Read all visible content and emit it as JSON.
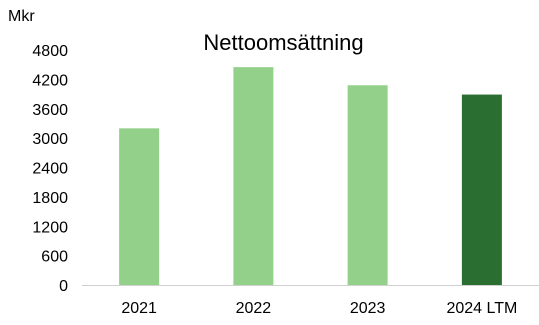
{
  "chart_data": {
    "type": "bar",
    "title": "Nettoomsättning",
    "unit_label": "Mkr",
    "categories": [
      "2021",
      "2022",
      "2023",
      "2024 LTM"
    ],
    "values": [
      3200,
      4450,
      4080,
      3890
    ],
    "yticks": [
      "0",
      "600",
      "1200",
      "1800",
      "2400",
      "3000",
      "3600",
      "4200",
      "4800"
    ],
    "ylim": [
      0,
      4800
    ],
    "grid": false,
    "bar_colors": [
      "#93d18a",
      "#93d18a",
      "#93d18a",
      "#2a6e31"
    ]
  }
}
